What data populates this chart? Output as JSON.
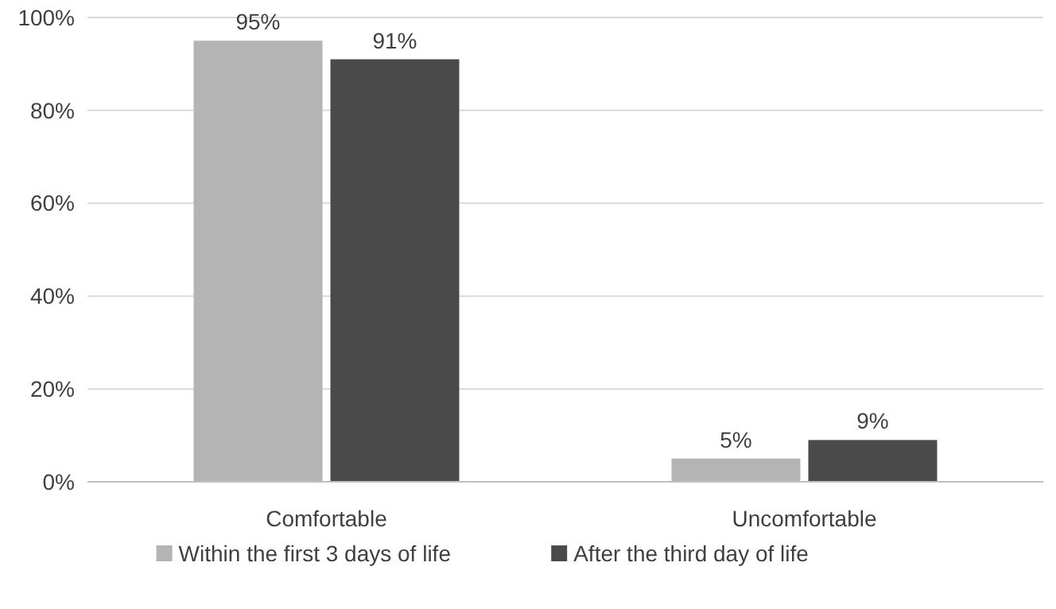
{
  "chart_data": {
    "type": "bar",
    "categories": [
      "Comfortable",
      "Uncomfortable"
    ],
    "series": [
      {
        "name": "Within the first 3 days of life",
        "color": "#b4b4b4",
        "values": [
          95,
          5
        ],
        "value_labels": [
          "95%",
          "5%"
        ]
      },
      {
        "name": "After the third day of life",
        "color": "#4a4a4a",
        "values": [
          91,
          9
        ],
        "value_labels": [
          "91%",
          "9%"
        ]
      }
    ],
    "ylim": [
      0,
      100
    ],
    "yticks": [
      {
        "value": 0,
        "label": "0%"
      },
      {
        "value": 20,
        "label": "20%"
      },
      {
        "value": 40,
        "label": "40%"
      },
      {
        "value": 60,
        "label": "60%"
      },
      {
        "value": 80,
        "label": "80%"
      },
      {
        "value": 100,
        "label": "100%"
      }
    ],
    "grid": "y",
    "legend": "bottom"
  }
}
